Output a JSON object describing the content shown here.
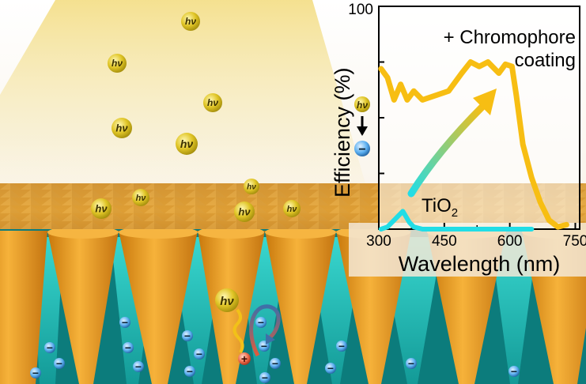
{
  "photons": {
    "label": "hν"
  },
  "charges": {
    "minus": "−",
    "plus": "+"
  },
  "colors": {
    "light_beam": "#f6e6a6",
    "photon": "#e2c62a",
    "cone_gold": "#f0a21e",
    "dye_cyan": "#22c6c0",
    "electron_blue": "#4aa8e8",
    "hole_red": "#e35a3a",
    "coating_curve": "#f7be13",
    "tio2_curve": "#22dde6"
  },
  "chart_data": {
    "type": "line",
    "title": "",
    "xlabel": "Wavelength (nm)",
    "ylabel": "Efficiency (%)",
    "xlim": [
      300,
      760
    ],
    "ylim": [
      0,
      100
    ],
    "x_ticks": [
      "300",
      "450",
      "600",
      "750"
    ],
    "y_ticks": [
      "100"
    ],
    "grid": false,
    "series": [
      {
        "name": "+ Chromophore coating",
        "color": "#f7be13",
        "x": [
          305,
          320,
          335,
          350,
          365,
          380,
          400,
          430,
          460,
          490,
          510,
          530,
          550,
          575,
          590,
          605,
          615,
          630,
          650,
          670,
          690,
          710,
          730
        ],
        "y": [
          72,
          68,
          58,
          65,
          58,
          62,
          58,
          60,
          62,
          70,
          75,
          73,
          75,
          70,
          74,
          73,
          60,
          38,
          23,
          12,
          4,
          1,
          2
        ]
      },
      {
        "name": "TiO",
        "name_subscript": "2",
        "color": "#22dde6",
        "x": [
          305,
          320,
          340,
          355,
          370,
          380,
          400,
          450,
          500,
          550,
          600,
          650
        ],
        "y": [
          0,
          1,
          5,
          8,
          3,
          1,
          0,
          0,
          0,
          0,
          0,
          0
        ]
      }
    ],
    "annotations": {
      "coating_label_line1": "+ Chromophore",
      "coating_label_line2": "coating",
      "tio2_label": "TiO",
      "tio2_subscript": "2",
      "side_icon_top": "hν",
      "side_icon_bottom": "−"
    }
  }
}
